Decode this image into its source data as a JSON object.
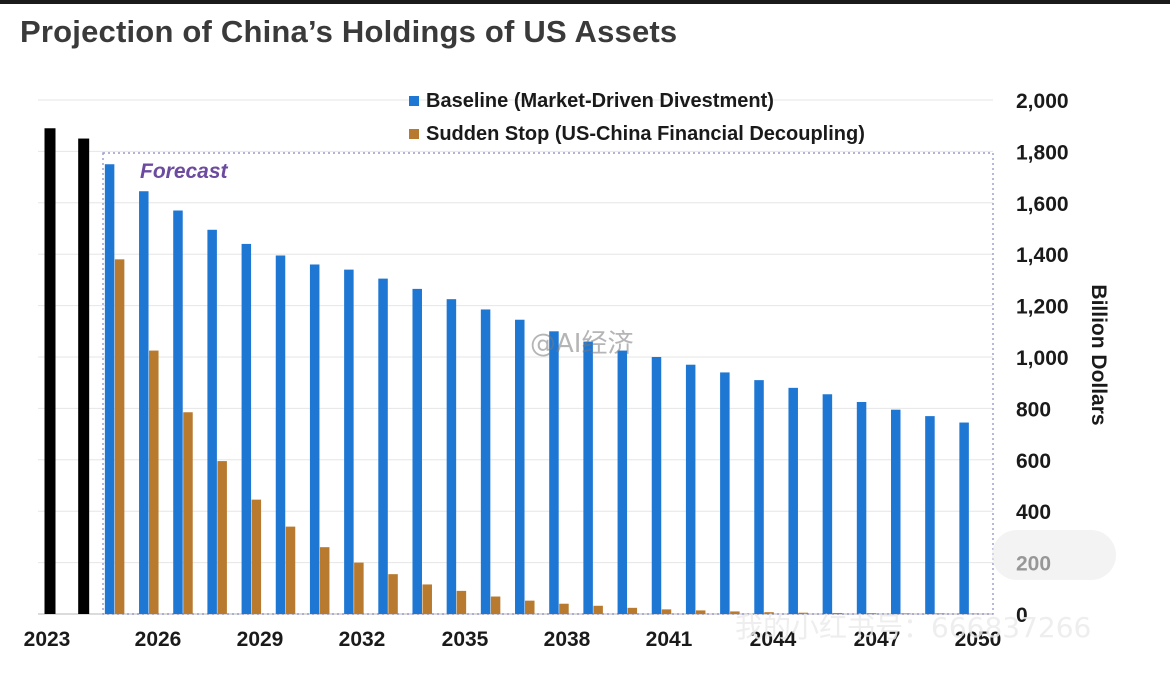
{
  "title": "Projection of China’s Holdings of US Assets",
  "chart_data": {
    "type": "bar",
    "categories": [
      "2023",
      "2024",
      "2025",
      "2026",
      "2027",
      "2028",
      "2029",
      "2030",
      "2031",
      "2032",
      "2033",
      "2034",
      "2035",
      "2036",
      "2037",
      "2038",
      "2039",
      "2040",
      "2041",
      "2042",
      "2043",
      "2044",
      "2045",
      "2046",
      "2047",
      "2048",
      "2049",
      "2050"
    ],
    "x_tick_labels": [
      "2023",
      "2026",
      "2029",
      "2032",
      "2035",
      "2038",
      "2041",
      "2044",
      "2047",
      "2050"
    ],
    "series": [
      {
        "name": "",
        "color": "#000000",
        "values": [
          1890,
          1850,
          null,
          null,
          null,
          null,
          null,
          null,
          null,
          null,
          null,
          null,
          null,
          null,
          null,
          null,
          null,
          null,
          null,
          null,
          null,
          null,
          null,
          null,
          null,
          null,
          null,
          null
        ]
      },
      {
        "name": "Baseline (Market-Driven Divestment)",
        "color": "#1f77d4",
        "values": [
          null,
          null,
          1750,
          1645,
          1570,
          1495,
          1440,
          1395,
          1360,
          1340,
          1305,
          1265,
          1225,
          1185,
          1145,
          1100,
          1060,
          1025,
          1000,
          970,
          940,
          910,
          880,
          855,
          825,
          795,
          770,
          745
        ]
      },
      {
        "name": "Sudden Stop (US-China Financial Decoupling)",
        "color": "#b87a2e",
        "values": [
          null,
          null,
          1380,
          1025,
          785,
          595,
          445,
          340,
          260,
          200,
          155,
          115,
          90,
          68,
          52,
          40,
          32,
          24,
          18,
          14,
          10,
          7,
          5,
          4,
          3,
          2,
          2,
          1
        ]
      }
    ],
    "annotation": "Forecast",
    "ylabel": "Billion Dollars",
    "y_ticks": [
      "2,000",
      "1,800",
      "1,600",
      "1,400",
      "1,200",
      "1,000",
      "800",
      "600",
      "400",
      "200",
      "0"
    ],
    "ylim": [
      0,
      2000
    ],
    "y_axis_side": "right",
    "legend_position": "top",
    "grid": true
  },
  "watermarks": {
    "weibo": "@AI经济",
    "id_text": "我的小红书号：666837266"
  }
}
